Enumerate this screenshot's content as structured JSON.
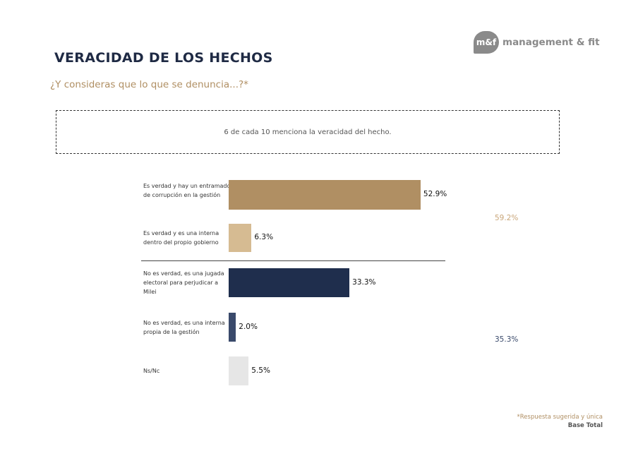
{
  "header": {
    "title": "VERACIDAD DE LOS HECHOS",
    "subtitle": "¿Y consideras que lo que se denuncia...?*",
    "logo_mark": "m&f",
    "logo_text": "management & fit"
  },
  "summary": "6 de cada 10 menciona la veracidad del hecho.",
  "chart_data": {
    "type": "bar",
    "orientation": "horizontal",
    "unit": "%",
    "categories": [
      "Es verdad y hay un entramado de corrupción en la gestión",
      "Es verdad y es una interna dentro del propio gobierno",
      "No es verdad, es una jugada electoral para perjudicar a Milei",
      "No es verdad, es una interna propia de la gestión",
      "Ns/Nc"
    ],
    "values": [
      52.9,
      6.3,
      33.3,
      2.0,
      5.5
    ],
    "labels": [
      "52.9%",
      "6.3%",
      "33.3%",
      "2.0%",
      "5.5%"
    ],
    "colors": [
      "#b08f63",
      "#d6bb92",
      "#1f2e4d",
      "#3a4a6b",
      "#e6e6e6"
    ],
    "groups": [
      {
        "label": "59.2%",
        "value": 59.2,
        "color": "#c9a679"
      },
      {
        "label": "35.3%",
        "value": 35.3,
        "color": "#3a4a6b"
      }
    ]
  },
  "footer": {
    "note": "*Respuesta sugerida y única",
    "base": "Base Total"
  }
}
